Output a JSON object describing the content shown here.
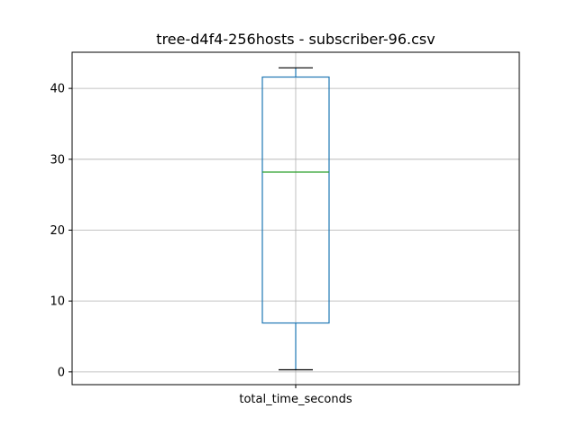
{
  "chart_data": {
    "type": "box",
    "title": "tree-d4f4-256hosts - subscriber-96.csv",
    "categories": [
      "total_time_seconds"
    ],
    "boxes": [
      {
        "category": "total_time_seconds",
        "whisker_low": 0.3,
        "q1": 6.9,
        "median": 28.2,
        "q3": 41.6,
        "whisker_high": 42.9
      }
    ],
    "y_ticks": [
      0,
      10,
      20,
      30,
      40
    ],
    "ylim": [
      -1.8,
      45.1
    ],
    "grid": true,
    "colors": {
      "box": "#1f77b4",
      "median": "#2ca02c",
      "whisker_cap": "#000000",
      "grid": "#b0b0b0",
      "axis": "#000000"
    }
  }
}
